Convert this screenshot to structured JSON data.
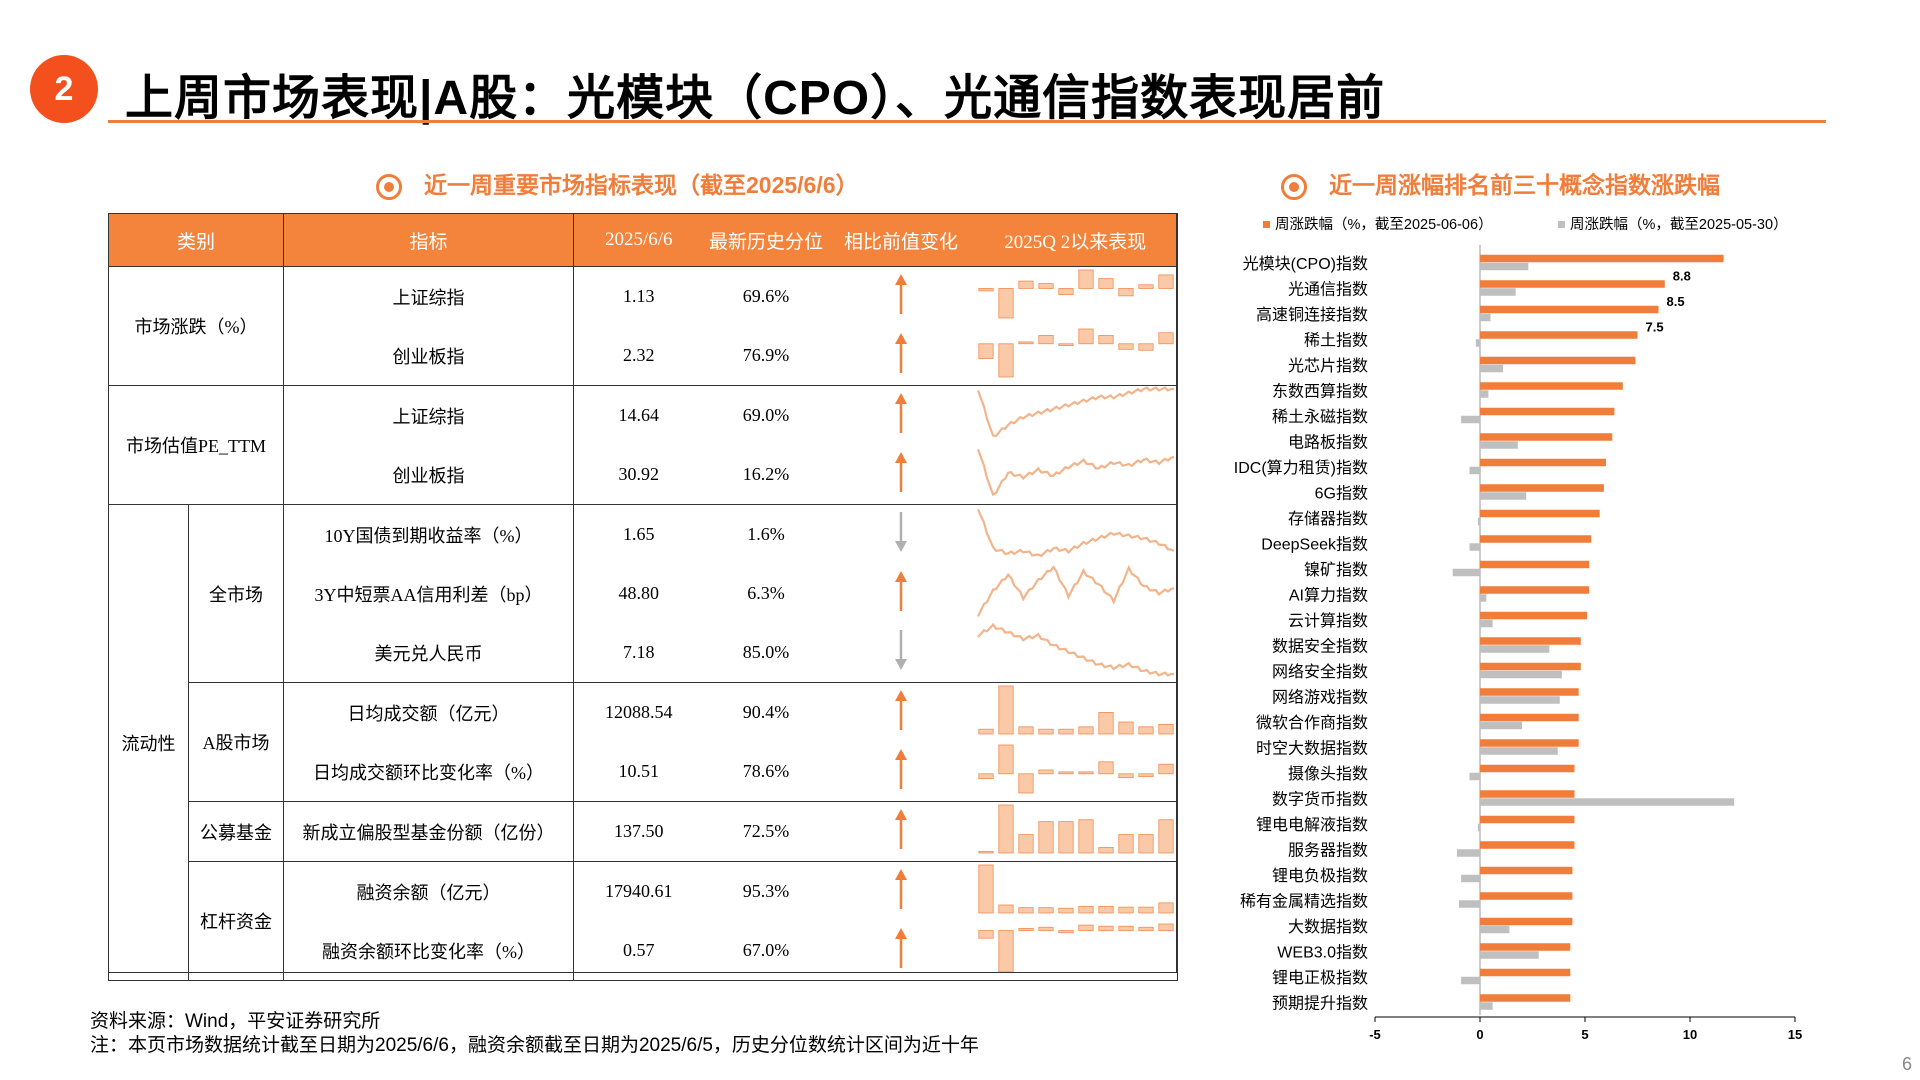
{
  "page": {
    "badge": "2",
    "title": "上周市场表现|A股：光模块（CPO）、光通信指数表现居前",
    "left_section_title": "近一周重要市场指标表现（截至2025/6/6）",
    "right_section_title": "近一周涨幅排名前三十概念指数涨跌幅",
    "source": "资料来源：Wind，平安证券研究所",
    "note": "注：本页市场数据统计截至日期为2025/6/6，融资余额截至日期为2025/6/5，历史分位数统计区间为近十年",
    "page_number": "6"
  },
  "table": {
    "headers": [
      "类别",
      "指标",
      "2025/6/6",
      "最新历史分位",
      "相比前值变化",
      "2025Q 2以来表现"
    ],
    "categories": {
      "market_change": "市场涨跌（%）",
      "valuation": "市场估值PE_TTM",
      "liquidity": "流动性",
      "whole_market": "全市场",
      "a_share": "A股市场",
      "fund": "公募基金",
      "leverage": "杠杆资金"
    },
    "rows": [
      {
        "name": "上证综指",
        "value": "1.13",
        "pct": "69.6%",
        "dir": "up",
        "spark": "bar",
        "data": [
          -0.2,
          -2.4,
          0.6,
          0.4,
          -0.5,
          1.5,
          0.8,
          -0.6,
          0.3,
          1.1
        ]
      },
      {
        "name": "创业板指",
        "value": "2.32",
        "pct": "76.9%",
        "dir": "up",
        "spark": "bar",
        "data": [
          -1.6,
          -3.6,
          0.2,
          0.9,
          -0.2,
          1.6,
          0.9,
          -0.6,
          -0.7,
          1.2
        ]
      },
      {
        "name": "上证综指",
        "value": "14.64",
        "pct": "69.0%",
        "dir": "up",
        "spark": "line",
        "data": [
          14.6,
          13.4,
          13.7,
          13.9,
          14.0,
          14.1,
          14.2,
          14.3,
          14.4,
          14.4,
          14.5,
          14.6,
          14.6,
          14.6
        ]
      },
      {
        "name": "创业板指",
        "value": "30.92",
        "pct": "16.2%",
        "dir": "up",
        "spark": "line",
        "data": [
          31.5,
          28.2,
          29.8,
          29.5,
          30.0,
          29.6,
          30.2,
          30.6,
          30.1,
          30.5,
          30.3,
          30.7,
          30.5,
          30.9
        ]
      },
      {
        "name": "10Y国债到期收益率（%）",
        "value": "1.65",
        "pct": "1.6%",
        "dir": "down",
        "spark": "line",
        "data": [
          1.82,
          1.66,
          1.64,
          1.65,
          1.63,
          1.66,
          1.65,
          1.68,
          1.7,
          1.72,
          1.71,
          1.7,
          1.68,
          1.65
        ]
      },
      {
        "name": "3Y中短票AA信用利差（bp）",
        "value": "48.80",
        "pct": "6.3%",
        "dir": "up",
        "spark": "line",
        "data": [
          46.0,
          48.5,
          50.2,
          47.8,
          49.6,
          51.0,
          48.0,
          50.5,
          49.2,
          47.5,
          50.8,
          49.0,
          48.3,
          48.8
        ]
      },
      {
        "name": "美元兑人民币",
        "value": "7.18",
        "pct": "85.0%",
        "dir": "down",
        "spark": "line",
        "data": [
          7.3,
          7.33,
          7.31,
          7.29,
          7.3,
          7.27,
          7.25,
          7.23,
          7.21,
          7.2,
          7.21,
          7.19,
          7.18,
          7.18
        ]
      },
      {
        "name": "日均成交额（亿元）",
        "value": "12088.54",
        "pct": "90.4%",
        "dir": "up",
        "spark": "bar",
        "data": [
          2,
          20,
          3,
          2,
          2,
          3,
          9,
          5,
          3,
          4
        ]
      },
      {
        "name": "日均成交额环比变化率（%）",
        "value": "10.51",
        "pct": "78.6%",
        "dir": "up",
        "spark": "bar",
        "data": [
          -1,
          6,
          -4,
          0.8,
          0.4,
          0.4,
          2.5,
          -0.8,
          -0.6,
          2
        ]
      },
      {
        "name": "新成立偏股型基金份额（亿份）",
        "value": "137.50",
        "pct": "72.5%",
        "dir": "up",
        "spark": "bar",
        "data": [
          0.5,
          26,
          10,
          17,
          17,
          18,
          3,
          10,
          10,
          18
        ]
      },
      {
        "name": "融资余额（亿元）",
        "value": "17940.61",
        "pct": "95.3%",
        "dir": "up",
        "spark": "bar",
        "data": [
          18,
          3,
          2,
          2,
          1.8,
          2.5,
          2.5,
          2.2,
          2.2,
          3.8
        ]
      },
      {
        "name": "融资余额环比变化率（%）",
        "value": "0.57",
        "pct": "67.0%",
        "dir": "up",
        "spark": "bar",
        "data": [
          -0.7,
          -3.8,
          0.2,
          0.3,
          -0.2,
          0.5,
          0.4,
          0.4,
          0.3,
          0.6
        ]
      }
    ]
  },
  "colors": {
    "accent": "#f07d3a",
    "header": "#f4843c",
    "spark_fill": "#fac9a8",
    "spark_stroke": "#f28c52",
    "line": "#f2b48a",
    "arrow_up": "#f07d3a",
    "arrow_down": "#b0b0b0",
    "gray_bar": "#bfbfbf"
  },
  "chart_data": {
    "type": "bar",
    "orientation": "horizontal",
    "categories": [
      "光模块(CPO)指数",
      "光通信指数",
      "高速铜连接指数",
      "稀土指数",
      "光芯片指数",
      "东数西算指数",
      "稀土永磁指数",
      "电路板指数",
      "IDC(算力租赁)指数",
      "6G指数",
      "存储器指数",
      "DeepSeek指数",
      "镍矿指数",
      "AI算力指数",
      "云计算指数",
      "数据安全指数",
      "网络安全指数",
      "网络游戏指数",
      "微软合作商指数",
      "时空大数据指数",
      "摄像头指数",
      "数字货币指数",
      "锂电电解液指数",
      "服务器指数",
      "锂电负极指数",
      "稀有金属精选指数",
      "大数据指数",
      "WEB3.0指数",
      "锂电正极指数",
      "预期提升指数"
    ],
    "series": [
      {
        "name": "周涨跌幅（%，截至2025-06-06）",
        "values": [
          11.6,
          8.8,
          8.5,
          7.5,
          7.4,
          6.8,
          6.4,
          6.3,
          6.0,
          5.9,
          5.7,
          5.3,
          5.2,
          5.2,
          5.1,
          4.8,
          4.8,
          4.7,
          4.7,
          4.7,
          4.5,
          4.5,
          4.5,
          4.5,
          4.4,
          4.4,
          4.4,
          4.3,
          4.3,
          4.3
        ]
      },
      {
        "name": "周涨跌幅（%，截至2025-05-30）",
        "values": [
          2.3,
          1.7,
          0.5,
          -0.2,
          1.1,
          0.4,
          -0.9,
          1.8,
          -0.5,
          2.2,
          -0.1,
          -0.5,
          -1.3,
          0.3,
          0.6,
          3.3,
          3.9,
          3.8,
          2.0,
          3.7,
          -0.5,
          12.1,
          -0.1,
          -1.1,
          -0.9,
          -1.0,
          1.4,
          2.8,
          -0.9,
          0.6
        ]
      }
    ],
    "data_labels": {
      "1": "8.8",
      "2": "8.5",
      "3": "7.5"
    },
    "xlim": [
      -5,
      15
    ],
    "xticks": [
      "-5",
      "0",
      "5",
      "10",
      "15"
    ],
    "legend_position": "top"
  }
}
